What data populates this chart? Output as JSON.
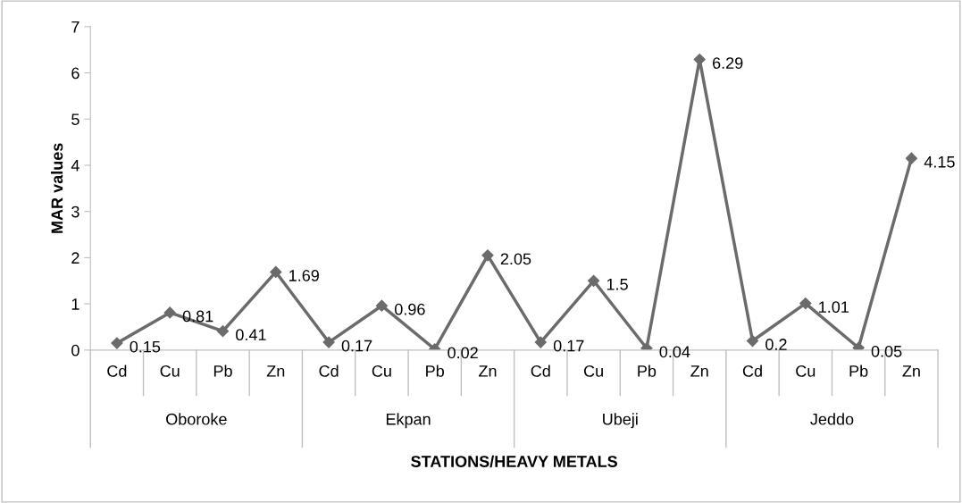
{
  "chart_data": {
    "type": "line",
    "xlabel": "STATIONS/HEAVY METALS",
    "ylabel": "MAR values",
    "categories": [
      "Cd",
      "Cu",
      "Pb",
      "Zn",
      "Cd",
      "Cu",
      "Pb",
      "Zn",
      "Cd",
      "Cu",
      "Pb",
      "Zn",
      "Cd",
      "Cu",
      "Pb",
      "Zn"
    ],
    "annotations": [
      "Oboroke",
      "Ekpan",
      "Ubeji",
      "Jeddo"
    ],
    "series": [
      {
        "color": "#6b6b6b",
        "values": [
          0.15,
          0.81,
          0.41,
          1.69,
          0.17,
          0.96,
          0.02,
          2.05,
          0.17,
          1.5,
          0.04,
          6.29,
          0.2,
          1.01,
          0.05,
          4.15
        ]
      }
    ],
    "ylim": [
      0,
      7
    ],
    "yticks": [
      0,
      1,
      2,
      3,
      4,
      5,
      6,
      7
    ],
    "data_labels": true,
    "grid": false,
    "legend": false,
    "marker": "diamond",
    "line_style": "solid"
  }
}
